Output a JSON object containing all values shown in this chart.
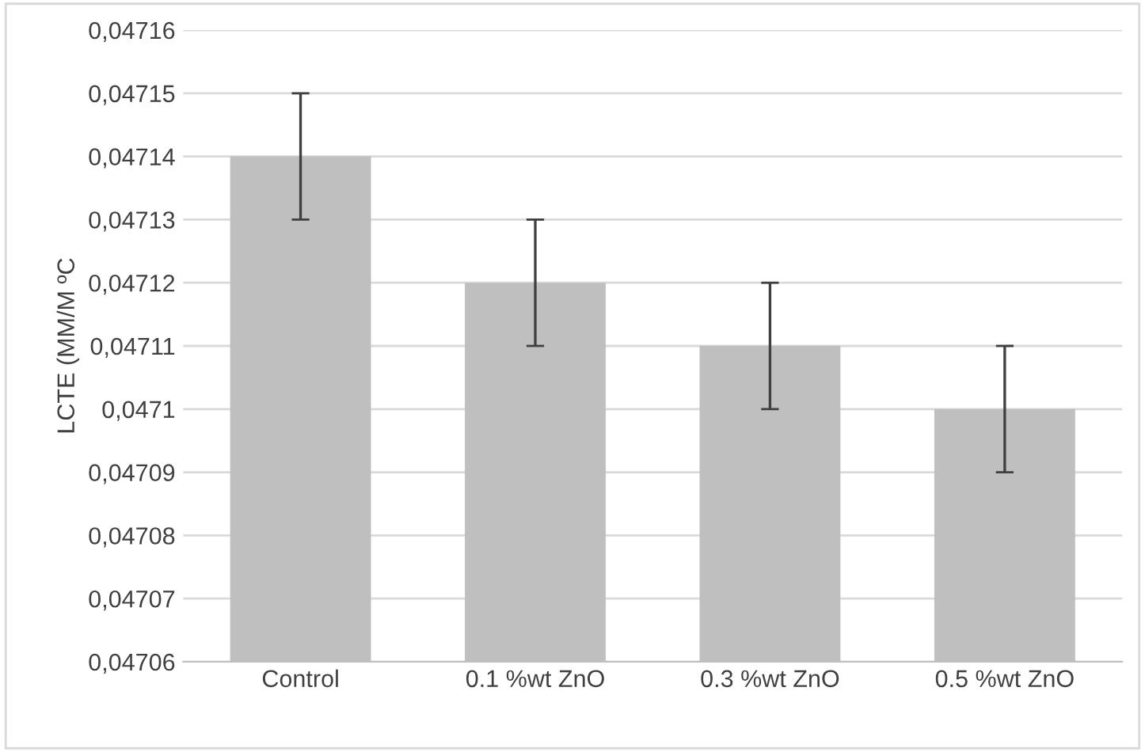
{
  "chart_data": {
    "type": "bar",
    "ylabel": "LCTE (MM/M ºC",
    "categories": [
      "Control",
      "0.1 %wt ZnO",
      "0.3 %wt ZnO",
      "0.5 %wt ZnO"
    ],
    "values": [
      0.04714,
      0.04712,
      0.04711,
      0.0471
    ],
    "errors": [
      1e-05,
      1e-05,
      1e-05,
      1e-05
    ],
    "color": "#bfbfbf",
    "ylim": [
      0.04706,
      0.04716
    ],
    "yticks": [
      {
        "value": 0.04706,
        "label": "0,04706"
      },
      {
        "value": 0.04707,
        "label": "0,04707"
      },
      {
        "value": 0.04708,
        "label": "0,04708"
      },
      {
        "value": 0.04709,
        "label": "0,04709"
      },
      {
        "value": 0.0471,
        "label": "0,0471"
      },
      {
        "value": 0.04711,
        "label": "0,04711"
      },
      {
        "value": 0.04712,
        "label": "0,04712"
      },
      {
        "value": 0.04713,
        "label": "0,04713"
      },
      {
        "value": 0.04714,
        "label": "0,04714"
      },
      {
        "value": 0.04715,
        "label": "0,04715"
      },
      {
        "value": 0.04716,
        "label": "0,04716"
      }
    ],
    "grid": "y"
  }
}
